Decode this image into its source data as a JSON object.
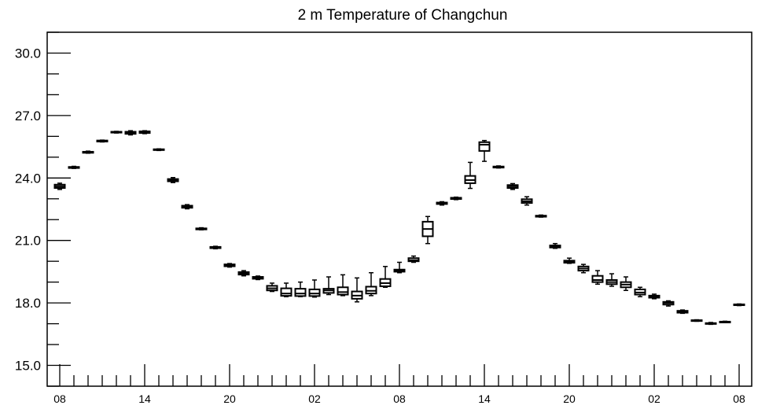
{
  "chart_data": {
    "type": "boxplot",
    "title": "2 m Temperature of Changchun",
    "xlabel": "",
    "ylabel": "",
    "ylim": [
      14.0,
      31.0
    ],
    "yticks": [
      15.0,
      18.0,
      21.0,
      24.0,
      27.0,
      30.0
    ],
    "ytick_labels": [
      "15.0",
      "18.0",
      "21.0",
      "24.0",
      "27.0",
      "30.0"
    ],
    "yminor_step": 1.0,
    "x_hour_start": 8,
    "x_hour_end": 56,
    "xticks": [
      8,
      14,
      20,
      26,
      32,
      38,
      44,
      50,
      56
    ],
    "xtick_labels": [
      "08",
      "14",
      "20",
      "02",
      "08",
      "14",
      "20",
      "02",
      "08"
    ],
    "grid": false,
    "legend": "none",
    "boxes": [
      {
        "x": 8,
        "min": 23.45,
        "q1": 23.52,
        "median": 23.6,
        "q3": 23.68,
        "max": 23.75
      },
      {
        "x": 9,
        "min": 24.46,
        "q1": 24.48,
        "median": 24.5,
        "q3": 24.53,
        "max": 24.56
      },
      {
        "x": 10,
        "min": 25.19,
        "q1": 25.21,
        "median": 25.23,
        "q3": 25.26,
        "max": 25.29
      },
      {
        "x": 11,
        "min": 25.73,
        "q1": 25.75,
        "median": 25.77,
        "q3": 25.8,
        "max": 25.82
      },
      {
        "x": 12,
        "min": 26.16,
        "q1": 26.18,
        "median": 26.2,
        "q3": 26.22,
        "max": 26.24
      },
      {
        "x": 13,
        "min": 26.07,
        "q1": 26.12,
        "median": 26.18,
        "q3": 26.22,
        "max": 26.27
      },
      {
        "x": 14,
        "min": 26.13,
        "q1": 26.16,
        "median": 26.2,
        "q3": 26.24,
        "max": 26.27
      },
      {
        "x": 15,
        "min": 25.32,
        "q1": 25.34,
        "median": 25.36,
        "q3": 25.38,
        "max": 25.4
      },
      {
        "x": 16,
        "min": 23.78,
        "q1": 23.84,
        "median": 23.9,
        "q3": 23.95,
        "max": 24.02
      },
      {
        "x": 17,
        "min": 22.52,
        "q1": 22.57,
        "median": 22.62,
        "q3": 22.67,
        "max": 22.72
      },
      {
        "x": 18,
        "min": 21.51,
        "q1": 21.53,
        "median": 21.55,
        "q3": 21.58,
        "max": 21.61
      },
      {
        "x": 19,
        "min": 20.6,
        "q1": 20.63,
        "median": 20.66,
        "q3": 20.69,
        "max": 20.72
      },
      {
        "x": 20,
        "min": 19.72,
        "q1": 19.76,
        "median": 19.8,
        "q3": 19.85,
        "max": 19.89
      },
      {
        "x": 21,
        "min": 19.3,
        "q1": 19.36,
        "median": 19.42,
        "q3": 19.48,
        "max": 19.55
      },
      {
        "x": 22,
        "min": 19.12,
        "q1": 19.16,
        "median": 19.2,
        "q3": 19.25,
        "max": 19.29
      },
      {
        "x": 23,
        "min": 18.55,
        "q1": 18.6,
        "median": 18.7,
        "q3": 18.82,
        "max": 18.95
      },
      {
        "x": 24,
        "min": 18.3,
        "q1": 18.34,
        "median": 18.45,
        "q3": 18.7,
        "max": 18.95
      },
      {
        "x": 25,
        "min": 18.3,
        "q1": 18.33,
        "median": 18.45,
        "q3": 18.68,
        "max": 19.0
      },
      {
        "x": 26,
        "min": 18.28,
        "q1": 18.33,
        "median": 18.45,
        "q3": 18.65,
        "max": 19.1
      },
      {
        "x": 27,
        "min": 18.4,
        "q1": 18.48,
        "median": 18.6,
        "q3": 18.68,
        "max": 19.25
      },
      {
        "x": 28,
        "min": 18.35,
        "q1": 18.4,
        "median": 18.52,
        "q3": 18.75,
        "max": 19.35
      },
      {
        "x": 29,
        "min": 18.05,
        "q1": 18.2,
        "median": 18.35,
        "q3": 18.55,
        "max": 19.2
      },
      {
        "x": 30,
        "min": 18.35,
        "q1": 18.45,
        "median": 18.58,
        "q3": 18.78,
        "max": 19.45
      },
      {
        "x": 31,
        "min": 18.75,
        "q1": 18.8,
        "median": 18.95,
        "q3": 19.15,
        "max": 19.75
      },
      {
        "x": 32,
        "min": 19.45,
        "q1": 19.5,
        "median": 19.55,
        "q3": 19.6,
        "max": 19.95
      },
      {
        "x": 33,
        "min": 19.95,
        "q1": 20.0,
        "median": 20.05,
        "q3": 20.15,
        "max": 20.25
      },
      {
        "x": 34,
        "min": 20.85,
        "q1": 21.2,
        "median": 21.55,
        "q3": 21.9,
        "max": 22.15
      },
      {
        "x": 35,
        "min": 22.7,
        "q1": 22.75,
        "median": 22.78,
        "q3": 22.82,
        "max": 22.86
      },
      {
        "x": 36,
        "min": 22.96,
        "q1": 22.99,
        "median": 23.02,
        "q3": 23.05,
        "max": 23.08
      },
      {
        "x": 37,
        "min": 23.5,
        "q1": 23.75,
        "median": 23.9,
        "q3": 24.1,
        "max": 24.75
      },
      {
        "x": 38,
        "min": 24.8,
        "q1": 25.3,
        "median": 25.6,
        "q3": 25.72,
        "max": 25.8
      },
      {
        "x": 39,
        "min": 24.48,
        "q1": 24.5,
        "median": 24.52,
        "q3": 24.55,
        "max": 24.58
      },
      {
        "x": 40,
        "min": 23.45,
        "q1": 23.52,
        "median": 23.6,
        "q3": 23.66,
        "max": 23.73
      },
      {
        "x": 41,
        "min": 22.7,
        "q1": 22.8,
        "median": 22.88,
        "q3": 22.98,
        "max": 23.1
      },
      {
        "x": 42,
        "min": 22.12,
        "q1": 22.14,
        "median": 22.16,
        "q3": 22.19,
        "max": 22.22
      },
      {
        "x": 43,
        "min": 20.62,
        "q1": 20.66,
        "median": 20.7,
        "q3": 20.76,
        "max": 20.85
      },
      {
        "x": 44,
        "min": 19.9,
        "q1": 19.93,
        "median": 19.98,
        "q3": 20.03,
        "max": 20.15
      },
      {
        "x": 45,
        "min": 19.45,
        "q1": 19.55,
        "median": 19.65,
        "q3": 19.75,
        "max": 19.85
      },
      {
        "x": 46,
        "min": 18.9,
        "q1": 19.0,
        "median": 19.1,
        "q3": 19.3,
        "max": 19.55
      },
      {
        "x": 47,
        "min": 18.8,
        "q1": 18.9,
        "median": 19.0,
        "q3": 19.1,
        "max": 19.4
      },
      {
        "x": 48,
        "min": 18.6,
        "q1": 18.75,
        "median": 18.88,
        "q3": 19.0,
        "max": 19.25
      },
      {
        "x": 49,
        "min": 18.3,
        "q1": 18.4,
        "median": 18.5,
        "q3": 18.65,
        "max": 18.75
      },
      {
        "x": 50,
        "min": 18.2,
        "q1": 18.25,
        "median": 18.3,
        "q3": 18.35,
        "max": 18.42
      },
      {
        "x": 51,
        "min": 17.85,
        "q1": 17.92,
        "median": 18.0,
        "q3": 18.05,
        "max": 18.1
      },
      {
        "x": 52,
        "min": 17.5,
        "q1": 17.53,
        "median": 17.57,
        "q3": 17.62,
        "max": 17.66
      },
      {
        "x": 53,
        "min": 17.12,
        "q1": 17.13,
        "median": 17.15,
        "q3": 17.17,
        "max": 17.19
      },
      {
        "x": 54,
        "min": 16.97,
        "q1": 16.99,
        "median": 17.01,
        "q3": 17.03,
        "max": 17.06
      },
      {
        "x": 55,
        "min": 17.05,
        "q1": 17.06,
        "median": 17.08,
        "q3": 17.1,
        "max": 17.12
      },
      {
        "x": 56,
        "min": 17.87,
        "q1": 17.89,
        "median": 17.91,
        "q3": 17.93,
        "max": 17.95
      }
    ]
  },
  "colors": {
    "background": "#ffffff",
    "axis": "#000000",
    "box_stroke": "#000000",
    "box_fill": "#ffffff"
  }
}
